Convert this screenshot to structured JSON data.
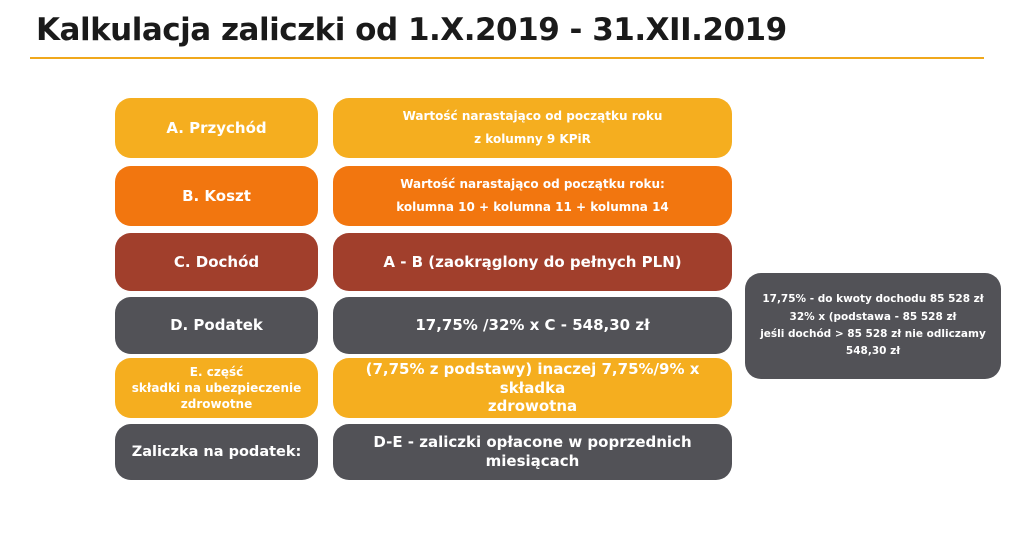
{
  "title": "Kalkulacja zaliczki od 1.X.2019 - 31.XII.2019",
  "rows": [
    {
      "label": "A. Przychód",
      "desc_line1": "Wartość narastająco od początku roku",
      "desc_line2": "z kolumny 9 KPiR",
      "color": "#f5ae1f"
    },
    {
      "label": "B. Koszt",
      "desc_line1": "Wartość narastająco od początku roku:",
      "desc_line2": "kolumna 10 + kolumna 11  + kolumna 14",
      "color": "#f2760f"
    },
    {
      "label": "C. Dochód",
      "desc": "A - B (zaokrąglony do pełnych PLN)",
      "color": "#a13f2c"
    },
    {
      "label": "D. Podatek",
      "desc": "17,75% /32% x C - 548,30 zł",
      "color": "#525257"
    },
    {
      "label_line1": "E. część",
      "label_line2": "składki na ubezpieczenie",
      "label_line3": "zdrowotne",
      "desc_line1": "(7,75% z podstawy) inaczej 7,75%/9% x składka",
      "desc_line2": "zdrowotna",
      "color": "#f5ae1f"
    },
    {
      "label": "Zaliczka na podatek:",
      "desc_line1": "D-E -  zaliczki opłacone w poprzednich",
      "desc_line2": "miesiącach",
      "color": "#525257"
    }
  ],
  "note": {
    "line1": "17,75%  - do kwoty dochodu 85 528 zł",
    "line2": "32% x (podstawa - 85 528 zł",
    "line3": "jeśli dochód > 85 528 zł nie odliczamy 548,30 zł"
  },
  "colors": {
    "accent_line": "#f0a81c",
    "yellow": "#f5ae1f",
    "orange": "#f2760f",
    "red": "#a13f2c",
    "gray": "#525257"
  }
}
